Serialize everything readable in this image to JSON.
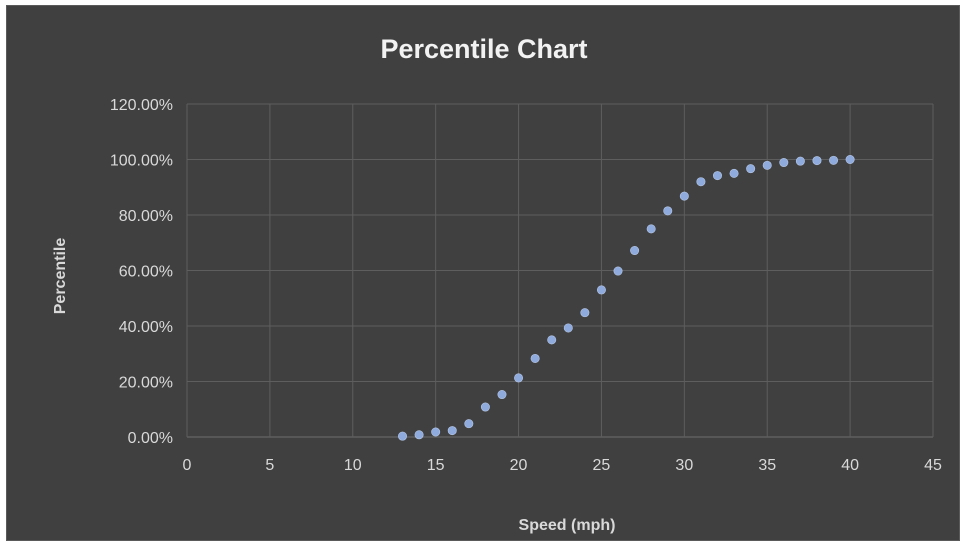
{
  "chart_data": {
    "type": "scatter",
    "title": "Percentile Chart",
    "xlabel": "Speed (mph)",
    "ylabel": "Percentile",
    "xlim": [
      0,
      45
    ],
    "ylim": [
      0,
      120
    ],
    "x_ticks": [
      "0",
      "5",
      "10",
      "15",
      "20",
      "25",
      "30",
      "35",
      "40",
      "45"
    ],
    "y_ticks": [
      "0.00%",
      "20.00%",
      "40.00%",
      "60.00%",
      "80.00%",
      "100.00%",
      "120.00%"
    ],
    "grid": true,
    "legend": "none",
    "marker_color": "#8faadc",
    "series": [
      {
        "x": [
          13,
          14,
          15,
          16,
          17,
          18,
          19,
          20,
          21,
          22,
          23,
          24,
          25,
          26,
          27,
          28,
          29,
          30,
          31,
          32,
          33,
          34,
          35,
          36,
          37,
          38,
          39,
          40
        ],
        "y": [
          0.3,
          0.8,
          1.8,
          2.3,
          4.8,
          10.8,
          15.3,
          21.3,
          28.3,
          35.0,
          39.3,
          44.8,
          53.0,
          59.8,
          67.2,
          75.0,
          81.5,
          86.8,
          92.0,
          94.2,
          95.0,
          96.7,
          97.9,
          98.9,
          99.4,
          99.6,
          99.7,
          100.0
        ]
      }
    ]
  }
}
